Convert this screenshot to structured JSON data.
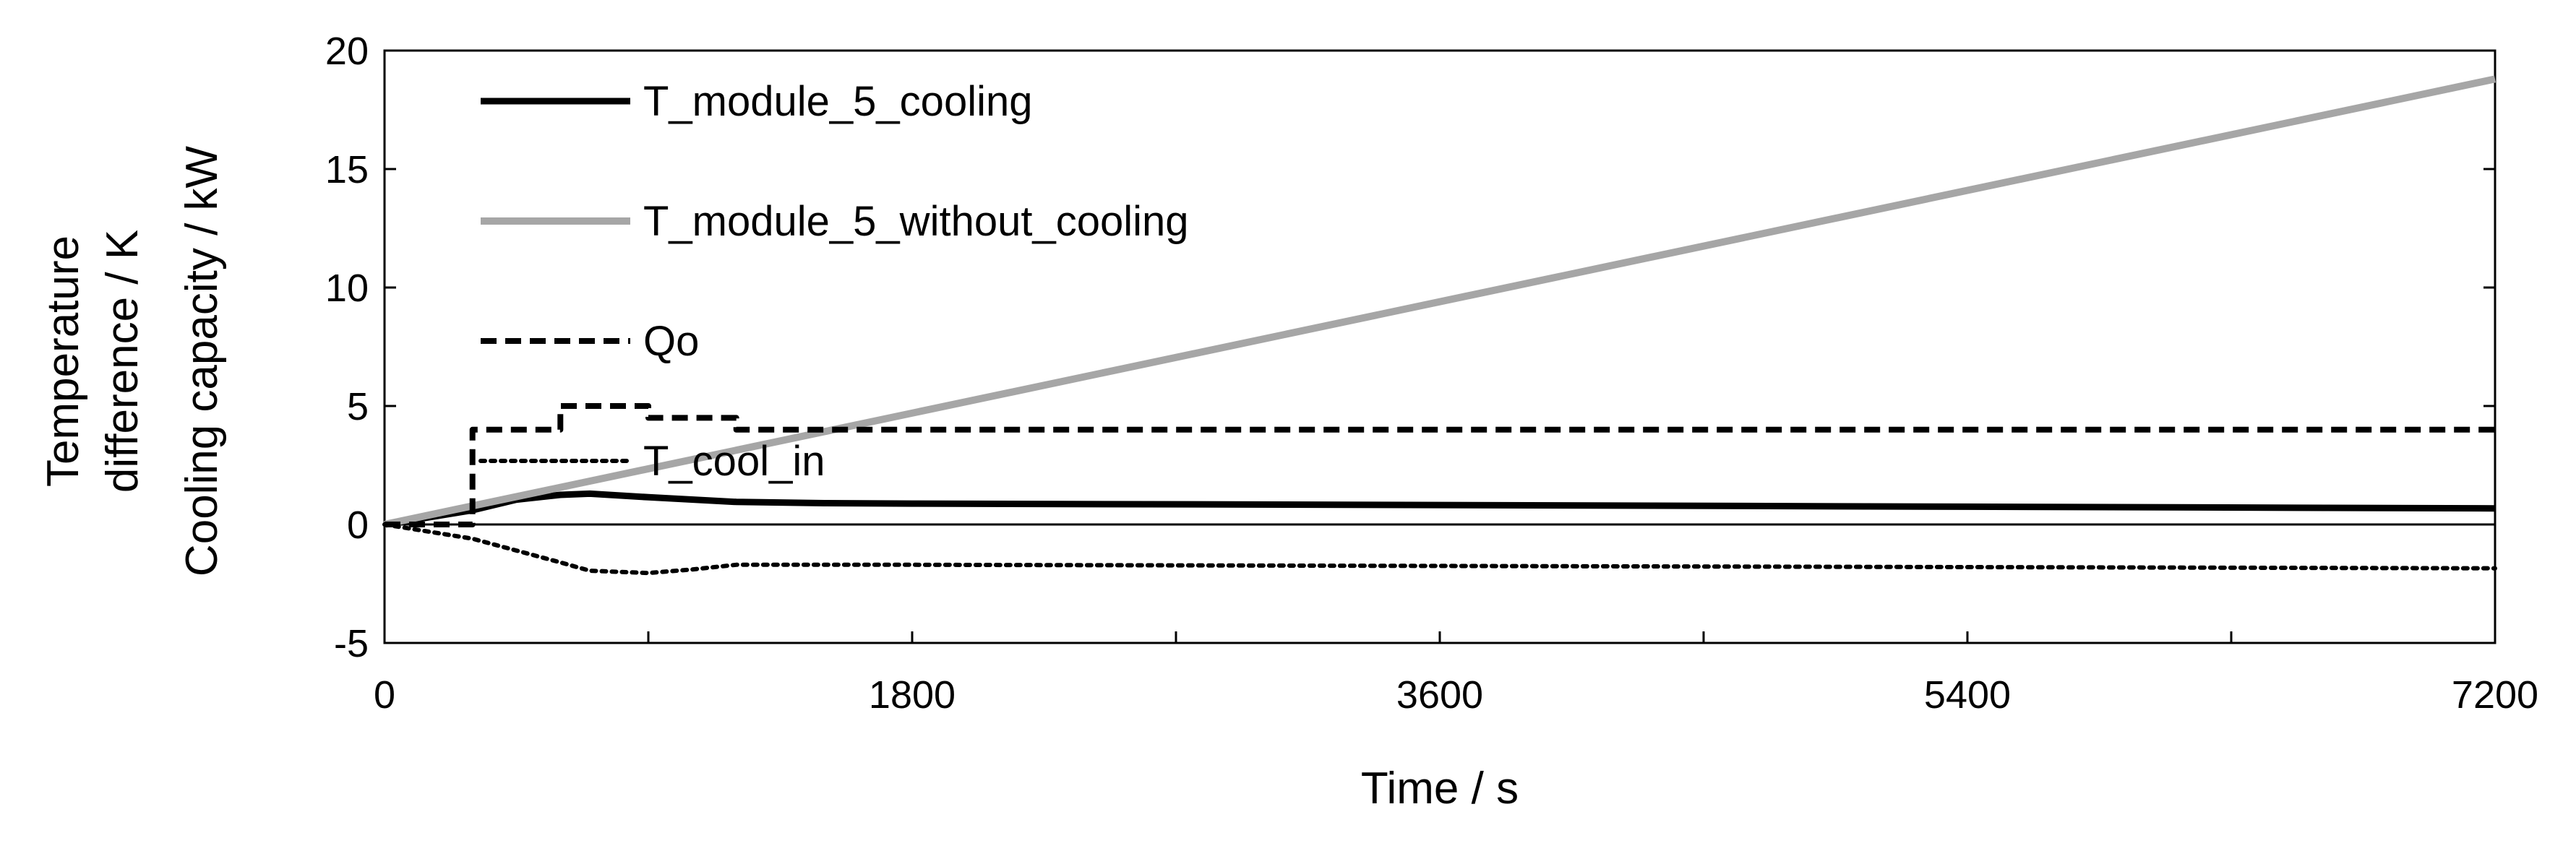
{
  "chart_data": {
    "type": "line",
    "title": "",
    "xlabel": "Time / s",
    "ylabel_lines": [
      "Temperature",
      "difference / K",
      "Cooling capacity / kW"
    ],
    "xlim": [
      0,
      7200
    ],
    "ylim": [
      -5,
      20
    ],
    "x_ticks": [
      0,
      1800,
      3600,
      5400,
      7200
    ],
    "x_minor_ticks": [
      900,
      2700,
      4500,
      6300
    ],
    "y_ticks": [
      -5,
      0,
      5,
      10,
      15,
      20
    ],
    "grid": false,
    "legend_position": "top-left",
    "zero_line": true,
    "series": [
      {
        "name": "T_module_5_cooling",
        "style": "solid",
        "color": "#000000",
        "points": [
          [
            0,
            0
          ],
          [
            300,
            0.6
          ],
          [
            450,
            1.05
          ],
          [
            600,
            1.25
          ],
          [
            700,
            1.3
          ],
          [
            900,
            1.15
          ],
          [
            1200,
            0.95
          ],
          [
            1500,
            0.9
          ],
          [
            1800,
            0.88
          ],
          [
            3600,
            0.82
          ],
          [
            5400,
            0.75
          ],
          [
            7200,
            0.68
          ]
        ]
      },
      {
        "name": "T_module_5_without_cooling",
        "style": "solid",
        "color": "#a6a6a6",
        "points": [
          [
            0,
            0
          ],
          [
            7200,
            18.8
          ]
        ]
      },
      {
        "name": "Qo",
        "style": "dashed",
        "color": "#000000",
        "points": [
          [
            0,
            0
          ],
          [
            300,
            0
          ],
          [
            300,
            4
          ],
          [
            600,
            4
          ],
          [
            600,
            5
          ],
          [
            900,
            5
          ],
          [
            900,
            4.5
          ],
          [
            1200,
            4.5
          ],
          [
            1200,
            4
          ],
          [
            7200,
            4
          ]
        ]
      },
      {
        "name": "T_cool_in",
        "style": "dotted",
        "color": "#000000",
        "points": [
          [
            0,
            0
          ],
          [
            300,
            -0.6
          ],
          [
            450,
            -1.1
          ],
          [
            600,
            -1.6
          ],
          [
            700,
            -1.95
          ],
          [
            900,
            -2.05
          ],
          [
            1050,
            -1.9
          ],
          [
            1200,
            -1.7
          ],
          [
            1800,
            -1.7
          ],
          [
            3600,
            -1.75
          ],
          [
            5400,
            -1.8
          ],
          [
            7200,
            -1.85
          ]
        ]
      }
    ]
  }
}
